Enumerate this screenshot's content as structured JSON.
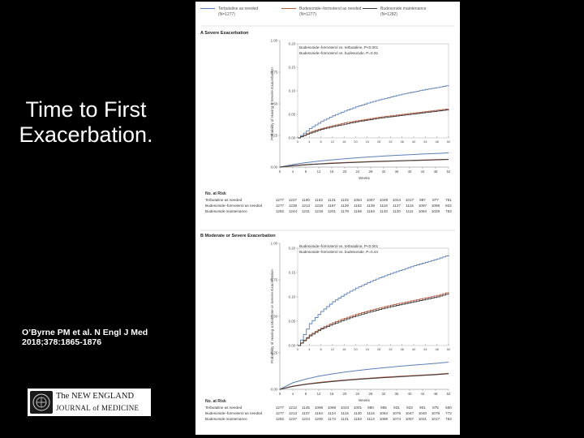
{
  "slide": {
    "title_line1": "Time to First",
    "title_line2": "Exacerbation.",
    "citation_line1": "O’Byrne PM et al. N Engl J Med",
    "citation_line2": "2018;378:1865-1876"
  },
  "journal_logo": {
    "line1": "The NEW ENGLAND",
    "line2": "JOURNAL of MEDICINE"
  },
  "figure": {
    "legend": [
      {
        "name": "Terbutaline as needed",
        "n": "(N=1277)",
        "color": "#5b7fb8"
      },
      {
        "name": "Budesonide–formoterol as needed",
        "n": "(N=1277)",
        "color": "#b85a3e"
      },
      {
        "name": "Budesonide maintenance",
        "n": "(N=1282)",
        "color": "#3a3a3a"
      }
    ],
    "weeks_label": "Weeks",
    "risk_header": "No. at Risk",
    "risk_groups": [
      "Terbutaline as needed",
      "Budesonide–formoterol as needed",
      "Budesonide maintenance"
    ]
  },
  "chart_data": [
    {
      "type": "line",
      "panel_label": "A  Severe Exacerbation",
      "ylabel": "Probability of Having a Severe Exacerbation",
      "xlabel": "Weeks",
      "x_ticks": [
        0,
        4,
        8,
        12,
        16,
        20,
        24,
        28,
        32,
        36,
        40,
        44,
        48,
        52
      ],
      "main_ylim": [
        0,
        1.0
      ],
      "main_y_ticks": [
        "0.00",
        "0.25",
        "0.50",
        "0.75",
        "1.00"
      ],
      "inset_ylim": [
        0,
        0.2
      ],
      "inset_y_ticks": [
        "0.00",
        "0.05",
        "0.10",
        "0.15",
        "0.20"
      ],
      "annotation_line1": "Budesonide–formoterol vs. terbutaline, P<0.001",
      "annotation_line2": "Budesonide–formoterol vs. budesonide, P=0.32",
      "series": [
        {
          "name": "Terbutaline as needed",
          "x": [
            0,
            4,
            8,
            12,
            16,
            20,
            24,
            28,
            32,
            36,
            40,
            44,
            48,
            52
          ],
          "values": [
            0,
            0.02,
            0.035,
            0.047,
            0.057,
            0.066,
            0.074,
            0.081,
            0.087,
            0.093,
            0.098,
            0.103,
            0.107,
            0.112
          ]
        },
        {
          "name": "Budesonide–formoterol as needed",
          "x": [
            0,
            4,
            8,
            12,
            16,
            20,
            24,
            28,
            32,
            36,
            40,
            44,
            48,
            52
          ],
          "values": [
            0,
            0.012,
            0.02,
            0.026,
            0.032,
            0.036,
            0.04,
            0.044,
            0.047,
            0.05,
            0.053,
            0.056,
            0.059,
            0.062
          ]
        },
        {
          "name": "Budesonide maintenance",
          "x": [
            0,
            4,
            8,
            12,
            16,
            20,
            24,
            28,
            32,
            36,
            40,
            44,
            48,
            52
          ],
          "values": [
            0,
            0.01,
            0.018,
            0.024,
            0.029,
            0.034,
            0.038,
            0.042,
            0.045,
            0.048,
            0.051,
            0.054,
            0.057,
            0.06
          ]
        }
      ],
      "risk_table": [
        [
          "1277",
          "1237",
          "1190",
          "1153",
          "1131",
          "1102",
          "1084",
          "1067",
          "1049",
          "1024",
          "1017",
          "987",
          "877",
          "751"
        ],
        [
          "1277",
          "1238",
          "1213",
          "1218",
          "1187",
          "1129",
          "1152",
          "1139",
          "1118",
          "1127",
          "1115",
          "1097",
          "1099",
          "822"
        ],
        [
          "1282",
          "1244",
          "1231",
          "1218",
          "1201",
          "1179",
          "1169",
          "1154",
          "1133",
          "1120",
          "1111",
          "1064",
          "1029",
          "753"
        ]
      ]
    },
    {
      "type": "line",
      "panel_label": "B  Moderate or Severe Exacerbation",
      "ylabel": "Probability of Having a Moderate or Severe Exacerbation",
      "xlabel": "Weeks",
      "x_ticks": [
        0,
        4,
        8,
        12,
        16,
        20,
        24,
        28,
        32,
        36,
        40,
        44,
        48,
        52
      ],
      "main_ylim": [
        0,
        1.0
      ],
      "main_y_ticks": [
        "0.00",
        "0.25",
        "0.50",
        "0.75",
        "1.00"
      ],
      "inset_ylim": [
        0,
        0.2
      ],
      "inset_y_ticks": [
        "0.00",
        "0.05",
        "0.10",
        "0.15",
        "0.20"
      ],
      "annotation_line1": "Budesonide–formoterol vs. terbutaline, P<0.001",
      "annotation_line2": "Budesonide–formoterol vs. budesonide, P=0.44",
      "series": [
        {
          "name": "Terbutaline as needed",
          "x": [
            0,
            4,
            8,
            12,
            16,
            20,
            24,
            28,
            32,
            36,
            40,
            44,
            48,
            52
          ],
          "values": [
            0,
            0.045,
            0.07,
            0.09,
            0.105,
            0.118,
            0.129,
            0.139,
            0.148,
            0.156,
            0.164,
            0.171,
            0.178,
            0.186
          ]
        },
        {
          "name": "Budesonide–formoterol as needed",
          "x": [
            0,
            4,
            8,
            12,
            16,
            20,
            24,
            28,
            32,
            36,
            40,
            44,
            48,
            52
          ],
          "values": [
            0,
            0.022,
            0.036,
            0.047,
            0.056,
            0.064,
            0.071,
            0.077,
            0.083,
            0.088,
            0.093,
            0.098,
            0.103,
            0.11
          ]
        },
        {
          "name": "Budesonide maintenance",
          "x": [
            0,
            4,
            8,
            12,
            16,
            20,
            24,
            28,
            32,
            36,
            40,
            44,
            48,
            52
          ],
          "values": [
            0,
            0.02,
            0.034,
            0.044,
            0.053,
            0.061,
            0.068,
            0.074,
            0.08,
            0.085,
            0.09,
            0.095,
            0.1,
            0.107
          ]
        }
      ],
      "risk_table": [
        [
          "1277",
          "1212",
          "1145",
          "1098",
          "1069",
          "1023",
          "1001",
          "980",
          "955",
          "931",
          "923",
          "901",
          "875",
          "660"
        ],
        [
          "1277",
          "1213",
          "1137",
          "1164",
          "1124",
          "1115",
          "1130",
          "1116",
          "1064",
          "1076",
          "1047",
          "1040",
          "1078",
          "772"
        ],
        [
          "1282",
          "1237",
          "1224",
          "1200",
          "1173",
          "1141",
          "1153",
          "1113",
          "1088",
          "1074",
          "1057",
          "1031",
          "1017",
          "753"
        ]
      ]
    }
  ]
}
